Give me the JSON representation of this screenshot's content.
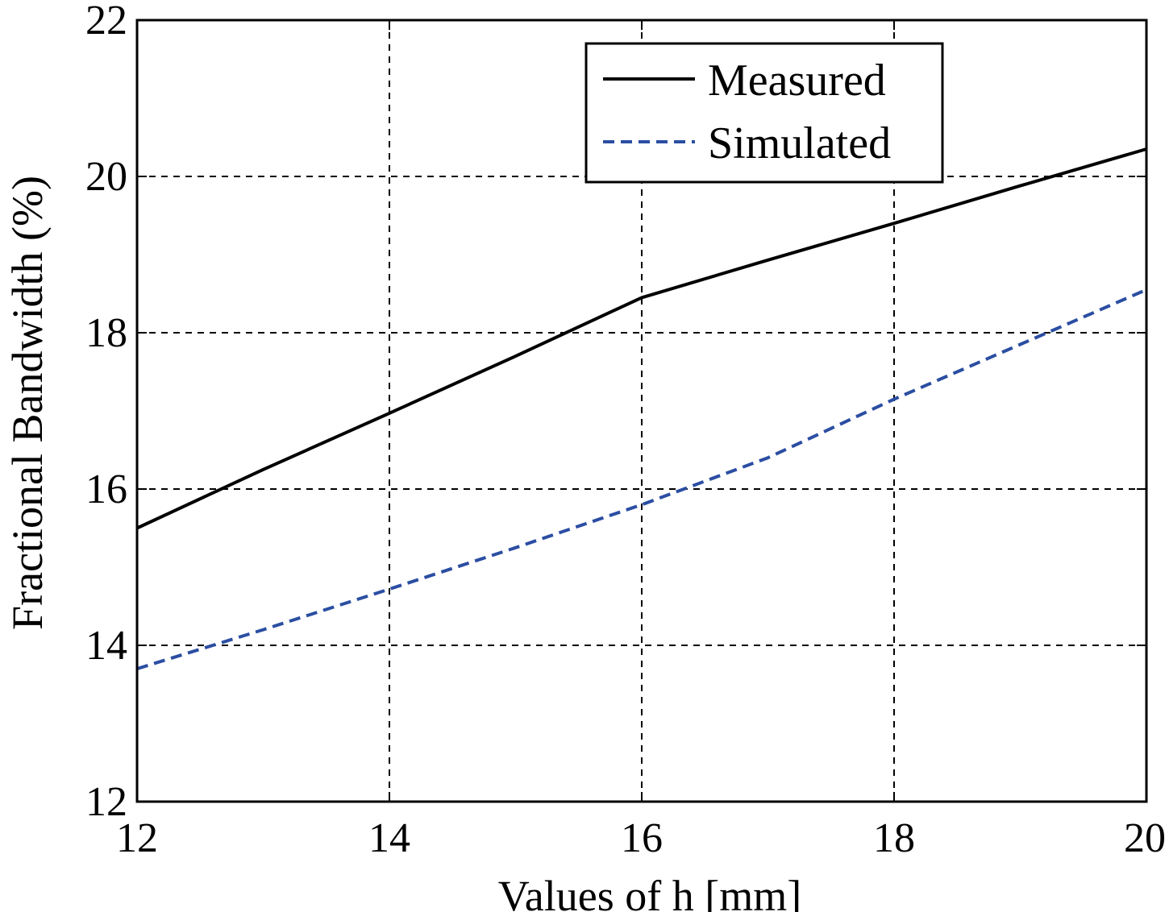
{
  "chart_data": {
    "type": "line",
    "title": "",
    "xlabel": "Values of h [mm]",
    "ylabel": "Fractional Bandwidth (%)",
    "xlim": [
      12,
      20
    ],
    "ylim": [
      12,
      22
    ],
    "xticks": [
      "12",
      "14",
      "16",
      "18",
      "20"
    ],
    "yticks": [
      "12",
      "14",
      "16",
      "18",
      "20",
      "22"
    ],
    "grid": true,
    "legend_position": "top-right",
    "series": [
      {
        "name": "Measured",
        "color": "#000000",
        "style": "solid",
        "x": [
          12,
          13,
          14,
          15,
          16,
          17,
          18,
          19,
          20
        ],
        "y": [
          15.5,
          16.25,
          16.97,
          17.7,
          18.45,
          18.93,
          19.4,
          19.88,
          20.35
        ]
      },
      {
        "name": "Simulated",
        "color": "#2b4ea2",
        "style": "dashed",
        "x": [
          12,
          13,
          14,
          15,
          16,
          17,
          18,
          19,
          20
        ],
        "y": [
          13.7,
          14.2,
          14.72,
          15.25,
          15.8,
          16.4,
          17.15,
          17.85,
          18.55
        ]
      }
    ]
  }
}
